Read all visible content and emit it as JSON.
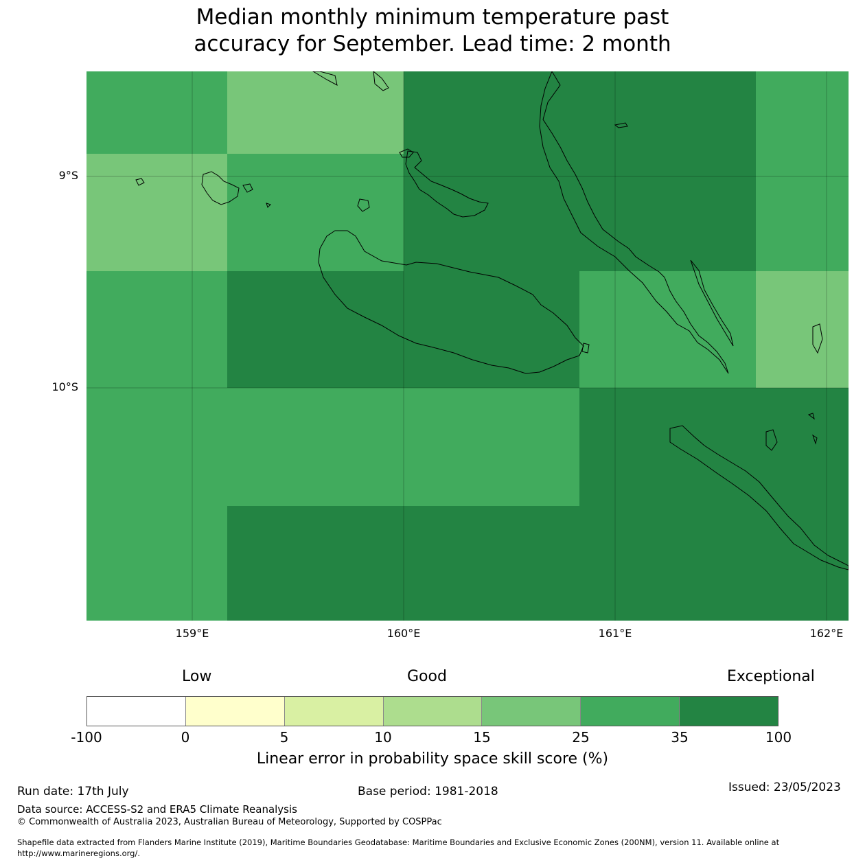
{
  "title": {
    "line1": "Median monthly minimum temperature past",
    "line2": "accuracy for September. Lead time: 2 month"
  },
  "map": {
    "lat_labels": [
      "9°S",
      "10°S"
    ],
    "lon_labels": [
      "159°E",
      "160°E",
      "161°E",
      "162°E"
    ],
    "colors": {
      "c15_25": "#78c679",
      "c25_35": "#41ab5d",
      "c35_100": "#238443"
    }
  },
  "colorbar": {
    "category_labels": [
      "Low",
      "Good",
      "Exceptional"
    ],
    "tick_labels": [
      "-100",
      "0",
      "5",
      "10",
      "15",
      "25",
      "35",
      "100"
    ],
    "colors": [
      "#ffffff",
      "#ffffcc",
      "#d9f0a3",
      "#addd8e",
      "#78c679",
      "#41ab5d",
      "#238443"
    ],
    "title": "Linear error in probability space skill score (%)"
  },
  "footer": {
    "run_date": "Run date: 17th July",
    "base_period": "Base period: 1981-2018",
    "issued": "Issued: 23/05/2023",
    "data_source": "Data source: ACCESS-S2 and ERA5 Climate Reanalysis",
    "copyright": "© Commonwealth of Australia 2023, Australian Bureau of Meteorology, Supported by COSPPac",
    "shapefile_line1": "Shapefile data extracted from Flanders Marine Institute (2019), Maritime Boundaries Geodatabase: Maritime Boundaries and Exclusive Economic Zones (200NM), version 11. Available online at",
    "shapefile_line2": "http://www.marineregions.org/."
  }
}
